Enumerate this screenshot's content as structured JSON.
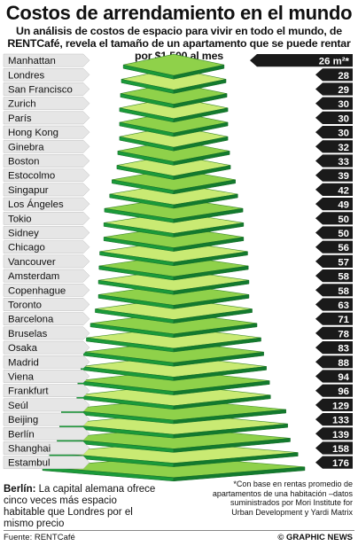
{
  "title": "Costos de arrendamiento en el mundo",
  "subtitle": "Un análisis de costos de espacio para vivir en todo el mundo, de RENTCafé, revela el tamaño de un apartamento que se puede rentar por $1.500 al mes",
  "chart_data": {
    "type": "bar",
    "title": "Costos de arrendamiento en el mundo",
    "categories": [
      "Manhattan",
      "Londres",
      "San Francisco",
      "Zurich",
      "París",
      "Hong Kong",
      "Ginebra",
      "Boston",
      "Estocolmo",
      "Singapur",
      "Los Ángeles",
      "Tokio",
      "Sidney",
      "Chicago",
      "Vancouver",
      "Amsterdam",
      "Copenhague",
      "Toronto",
      "Barcelona",
      "Bruselas",
      "Osaka",
      "Madrid",
      "Viena",
      "Frankfurt",
      "Seúl",
      "Beijing",
      "Berlín",
      "Shanghai",
      "Estambul"
    ],
    "values": [
      26,
      28,
      29,
      30,
      30,
      30,
      32,
      33,
      39,
      42,
      49,
      50,
      50,
      56,
      57,
      58,
      58,
      63,
      71,
      78,
      83,
      88,
      94,
      96,
      129,
      133,
      139,
      158,
      176
    ],
    "value_labels": [
      "26 m²*",
      "28",
      "29",
      "30",
      "30",
      "30",
      "32",
      "33",
      "39",
      "42",
      "49",
      "50",
      "50",
      "56",
      "57",
      "58",
      "58",
      "63",
      "71",
      "78",
      "83",
      "88",
      "94",
      "96",
      "129",
      "133",
      "139",
      "158",
      "176"
    ],
    "colors": {
      "label_bg": "#e6e6e6",
      "value_bg": "#1a1a1a",
      "green_light": "#c9ea73",
      "green_mid": "#8fd14a",
      "green_dark": "#1b9a3a"
    }
  },
  "notes": {
    "left_bold": "Berlín:",
    "left_text": " La capital alemana ofrece cinco veces más espacio habitable que Londres por el mismo precio",
    "right": "*Con base en rentas promedio de apartamentos de una habitación –datos suministrados por Mori Institute for Urban Development y Yardi Matrix"
  },
  "footer": {
    "source": "Fuente: RENTCafé",
    "credit": "© GRAPHIC NEWS"
  }
}
